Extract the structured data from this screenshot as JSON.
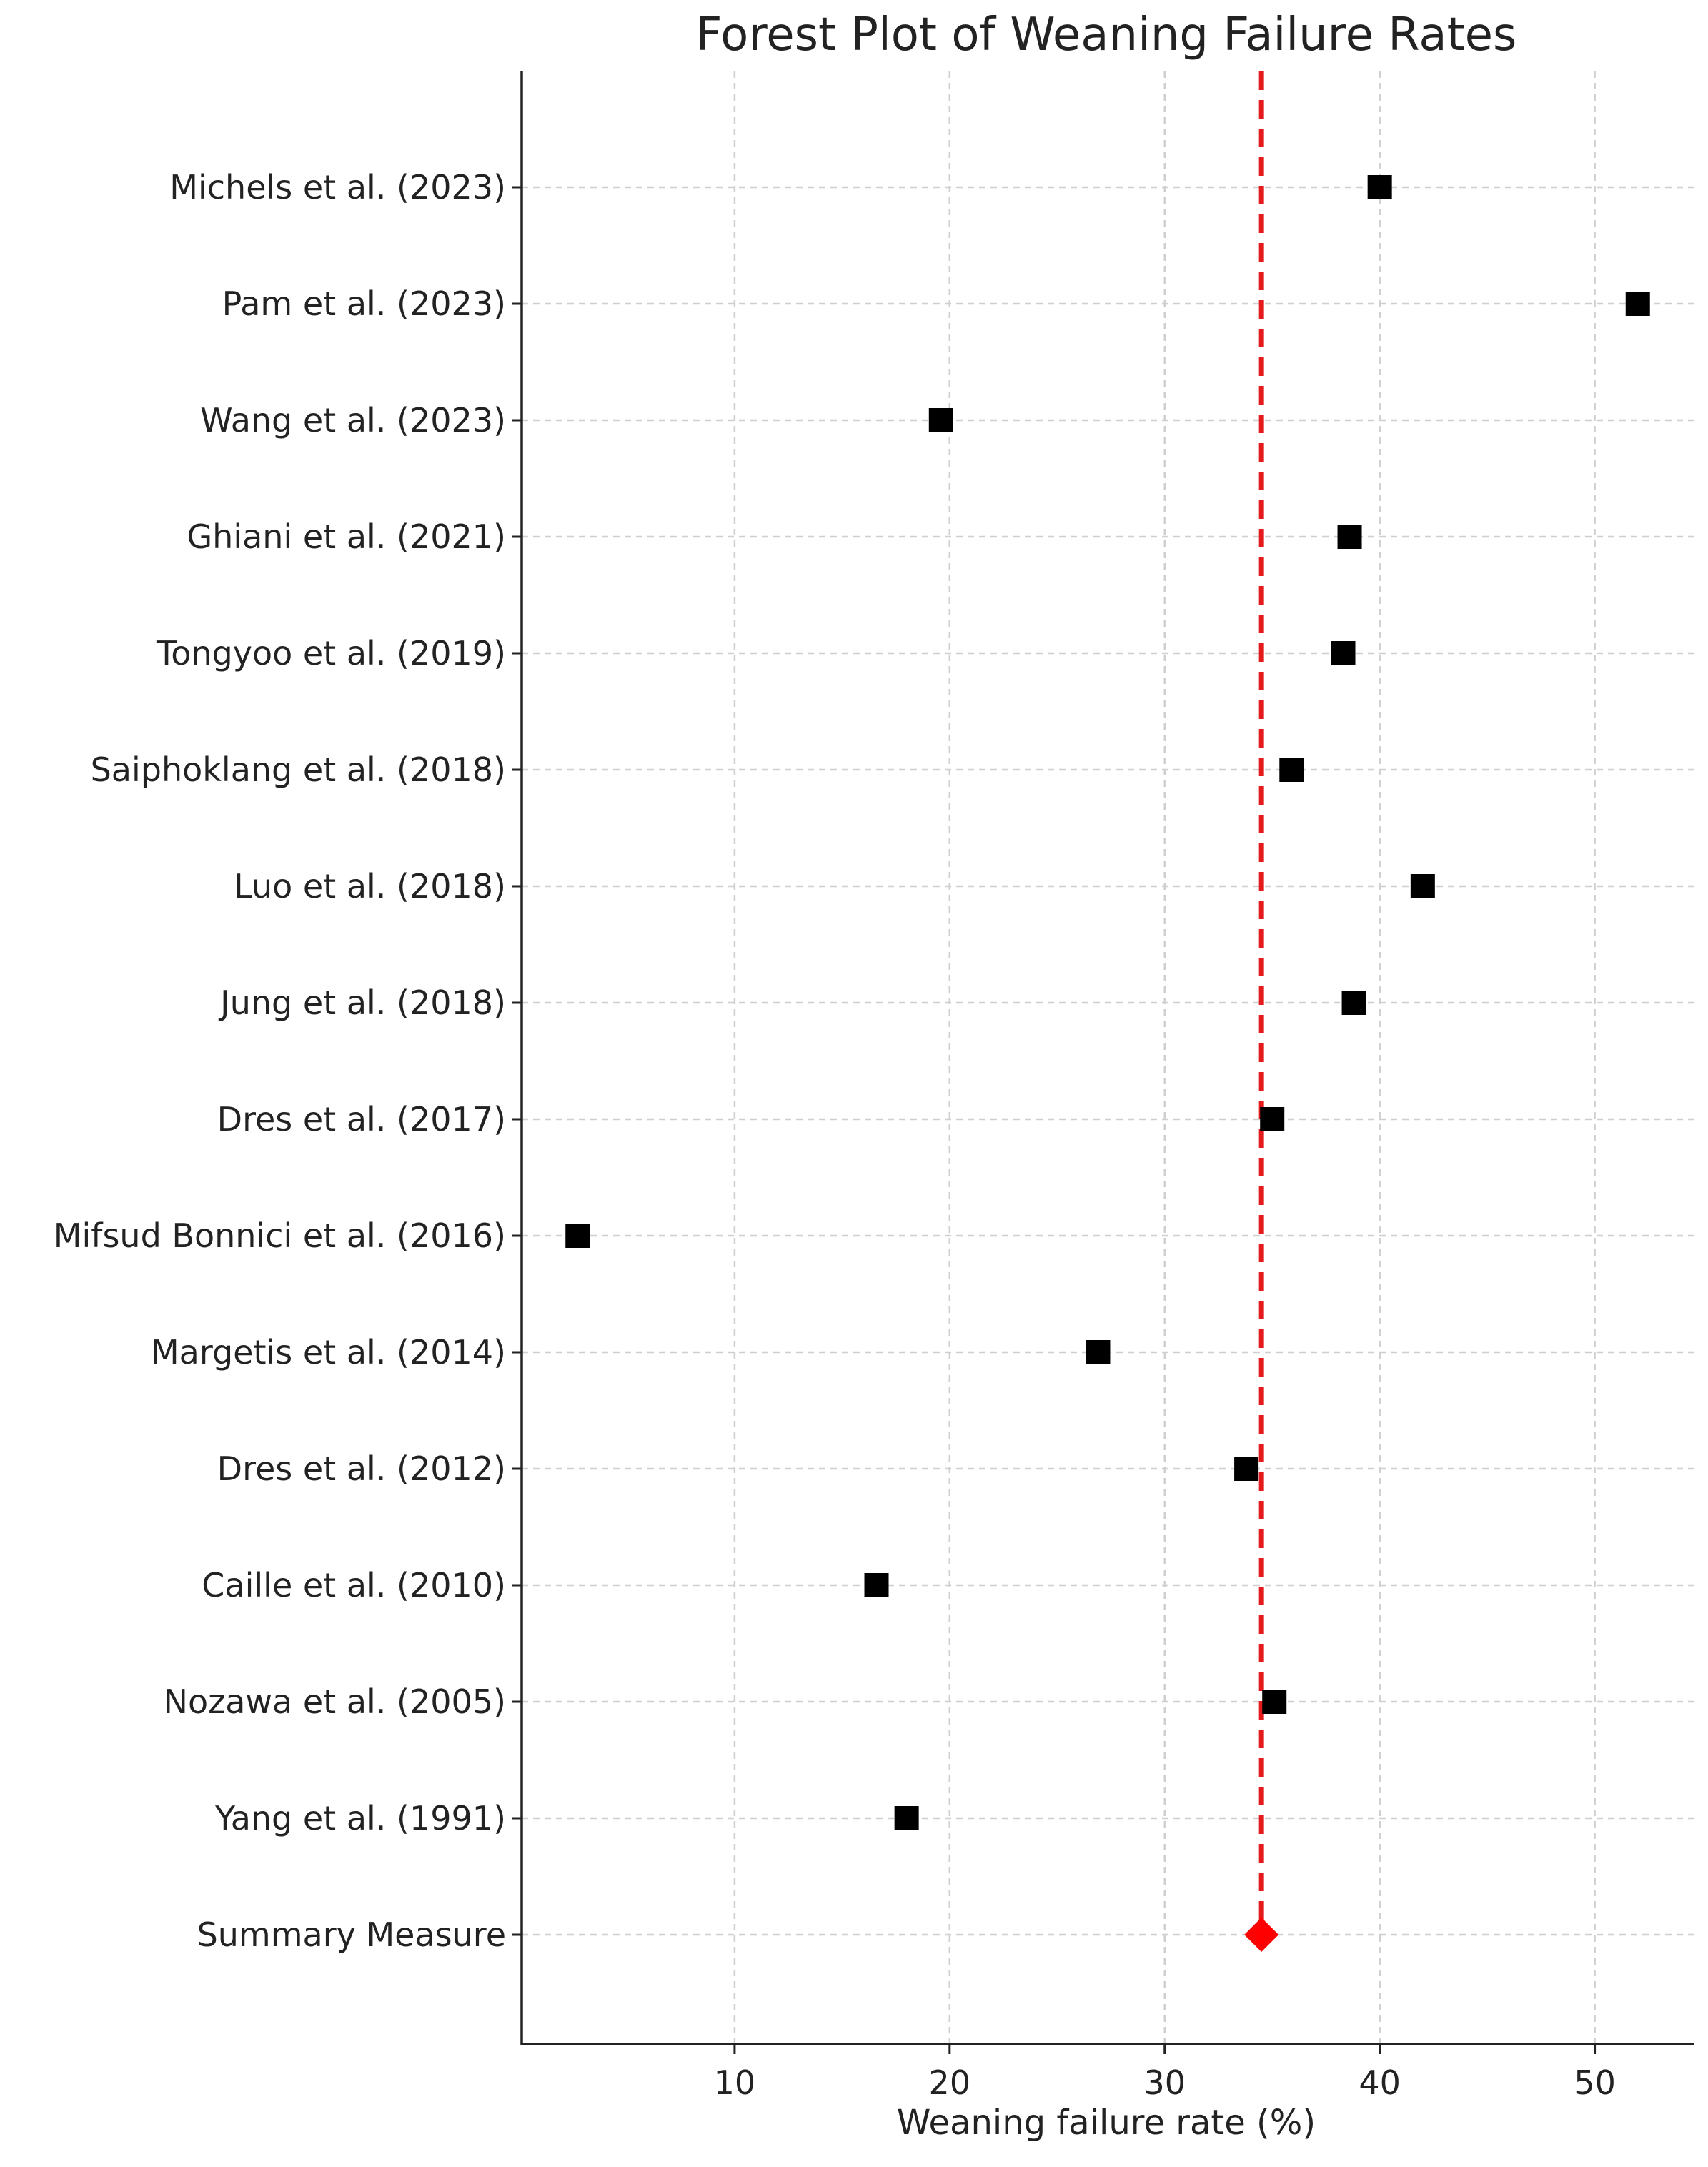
{
  "chart_data": {
    "type": "scatter",
    "title": "Forest Plot of Weaning Failure Rates",
    "xlabel": "Weaning failure rate (%)",
    "ylabel": "",
    "xlim": [
      0.1,
      54.6
    ],
    "xticks": [
      10,
      20,
      30,
      40,
      50
    ],
    "grid": true,
    "studies": [
      {
        "label": "Michels et al. (2023)",
        "value": 40.0
      },
      {
        "label": "Pam et al. (2023)",
        "value": 52.0
      },
      {
        "label": "Wang et al. (2023)",
        "value": 19.6
      },
      {
        "label": "Ghiani et al. (2021)",
        "value": 38.6
      },
      {
        "label": "Tongyoo et al. (2019)",
        "value": 38.3
      },
      {
        "label": "Saiphoklang et al. (2018)",
        "value": 35.9
      },
      {
        "label": "Luo et al. (2018)",
        "value": 42.0
      },
      {
        "label": "Jung et al. (2018)",
        "value": 38.8
      },
      {
        "label": "Dres et al. (2017)",
        "value": 35.0
      },
      {
        "label": "Mifsud Bonnici et al. (2016)",
        "value": 2.7
      },
      {
        "label": "Margetis et al. (2014)",
        "value": 26.9
      },
      {
        "label": "Dres et al. (2012)",
        "value": 33.8
      },
      {
        "label": "Caille et al. (2010)",
        "value": 16.6
      },
      {
        "label": "Nozawa et al. (2005)",
        "value": 35.1
      },
      {
        "label": "Yang et al. (1991)",
        "value": 18.0
      }
    ],
    "summary": {
      "label": "Summary Measure",
      "value": 34.5
    },
    "marker_color": "#000000",
    "summary_color": "#ff0000",
    "reference_line_color": "#e41a1c"
  }
}
